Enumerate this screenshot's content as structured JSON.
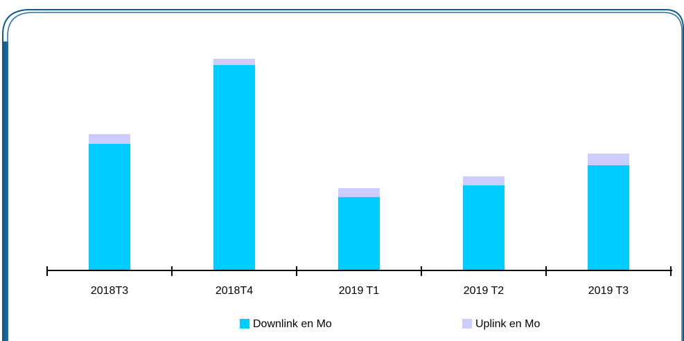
{
  "chart_data": {
    "type": "stacked_bar",
    "categories": [
      "2018T3",
      "2018T4",
      "2019 T1",
      "2019 T2",
      "2019 T3"
    ],
    "series": [
      {
        "name": "Downlink en Mo",
        "color": "#00ccff",
        "values": [
          183,
          297,
          106,
          123,
          152
        ]
      },
      {
        "name": "Uplink en Mo",
        "color": "#ccccff",
        "values": [
          14,
          9,
          13,
          13,
          17
        ]
      }
    ],
    "ylim": [
      0,
      366
    ],
    "legend": "bottom"
  }
}
